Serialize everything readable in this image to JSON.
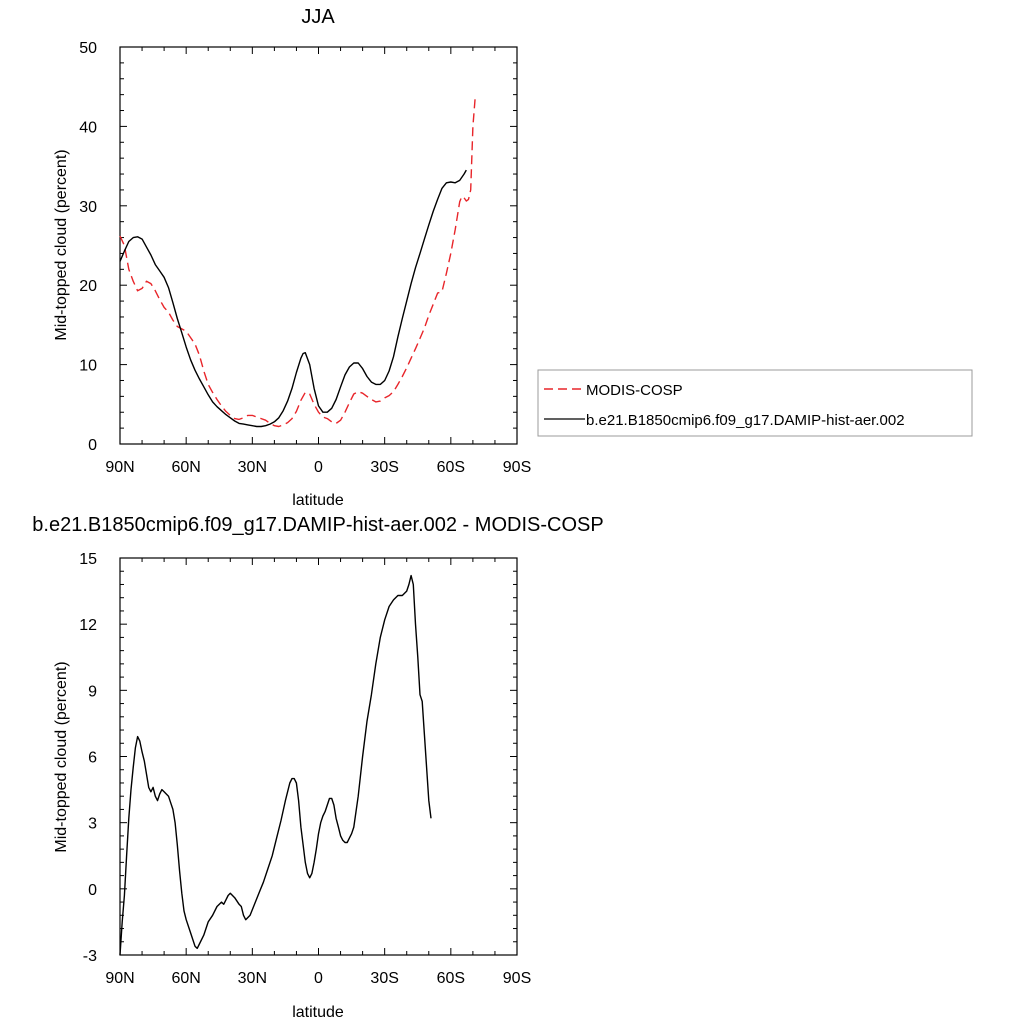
{
  "chart_data": [
    {
      "type": "line",
      "title": "JJA",
      "xlabel": "latitude",
      "ylabel": "Mid-topped cloud (percent)",
      "x_ticks": [
        90,
        60,
        30,
        0,
        -30,
        -60,
        -90
      ],
      "x_tick_labels": [
        "90N",
        "60N",
        "30N",
        "0",
        "30S",
        "60S",
        "90S"
      ],
      "xlim": [
        90,
        -90
      ],
      "y_ticks": [
        0,
        10,
        20,
        30,
        40,
        50
      ],
      "ylim": [
        0,
        50
      ],
      "grid": false,
      "legend_position": "right",
      "series": [
        {
          "name": "MODIS-COSP",
          "color": "#e8252a",
          "dash": "dashed",
          "points": [
            [
              90,
              26.2
            ],
            [
              88,
              25
            ],
            [
              86,
              22
            ],
            [
              84,
              20.5
            ],
            [
              82,
              19.3
            ],
            [
              80,
              19.6
            ],
            [
              78,
              20.5
            ],
            [
              76,
              20.2
            ],
            [
              74,
              19.3
            ],
            [
              72,
              18.2
            ],
            [
              70,
              17.2
            ],
            [
              68,
              16.6
            ],
            [
              66,
              15.6
            ],
            [
              64,
              14.8
            ],
            [
              62,
              14.5
            ],
            [
              60,
              14.2
            ],
            [
              58,
              13.4
            ],
            [
              56,
              12.6
            ],
            [
              54,
              11.2
            ],
            [
              52,
              9.2
            ],
            [
              50,
              7.5
            ],
            [
              48,
              6.5
            ],
            [
              46,
              5.6
            ],
            [
              44,
              4.8
            ],
            [
              42,
              4.1
            ],
            [
              40,
              3.6
            ],
            [
              38,
              3.2
            ],
            [
              36,
              3.1
            ],
            [
              34,
              3.3
            ],
            [
              32,
              3.6
            ],
            [
              30,
              3.6
            ],
            [
              28,
              3.4
            ],
            [
              26,
              3.2
            ],
            [
              24,
              3.0
            ],
            [
              22,
              2.6
            ],
            [
              20,
              2.3
            ],
            [
              18,
              2.2
            ],
            [
              16,
              2.4
            ],
            [
              14,
              2.7
            ],
            [
              12,
              3.2
            ],
            [
              10,
              4.1
            ],
            [
              8,
              5.5
            ],
            [
              6,
              6.5
            ],
            [
              4,
              6.3
            ],
            [
              2,
              5.0
            ],
            [
              0,
              4.0
            ],
            [
              -2,
              3.4
            ],
            [
              -4,
              3.2
            ],
            [
              -6,
              2.8
            ],
            [
              -8,
              2.6
            ],
            [
              -10,
              3.0
            ],
            [
              -12,
              4.0
            ],
            [
              -14,
              5.2
            ],
            [
              -16,
              6.3
            ],
            [
              -18,
              6.6
            ],
            [
              -20,
              6.4
            ],
            [
              -22,
              6.0
            ],
            [
              -24,
              5.6
            ],
            [
              -26,
              5.3
            ],
            [
              -28,
              5.4
            ],
            [
              -30,
              5.8
            ],
            [
              -32,
              6.1
            ],
            [
              -34,
              6.6
            ],
            [
              -36,
              7.5
            ],
            [
              -38,
              8.5
            ],
            [
              -40,
              9.6
            ],
            [
              -42,
              10.8
            ],
            [
              -44,
              12.0
            ],
            [
              -46,
              13.3
            ],
            [
              -48,
              14.6
            ],
            [
              -50,
              16.2
            ],
            [
              -52,
              17.6
            ],
            [
              -54,
              19.0
            ],
            [
              -56,
              19.2
            ],
            [
              -58,
              21.5
            ],
            [
              -60,
              24.0
            ],
            [
              -62,
              27.0
            ],
            [
              -64,
              30.5
            ],
            [
              -65,
              31.2
            ],
            [
              -66,
              31.0
            ],
            [
              -67,
              30.6
            ],
            [
              -68,
              30.8
            ],
            [
              -69,
              32.0
            ],
            [
              -70,
              40.0
            ],
            [
              -71,
              43.5
            ]
          ]
        },
        {
          "name": "b.e21.B1850cmip6.f09_g17.DAMIP-hist-aer.002",
          "color": "#000000",
          "dash": "solid",
          "points": [
            [
              90,
              23.0
            ],
            [
              88,
              24.3
            ],
            [
              86,
              25.5
            ],
            [
              84,
              26.0
            ],
            [
              82,
              26.1
            ],
            [
              80,
              25.8
            ],
            [
              78,
              24.8
            ],
            [
              76,
              23.8
            ],
            [
              74,
              22.6
            ],
            [
              72,
              21.8
            ],
            [
              70,
              21.0
            ],
            [
              68,
              19.7
            ],
            [
              66,
              17.8
            ],
            [
              64,
              15.8
            ],
            [
              62,
              14.0
            ],
            [
              60,
              12.2
            ],
            [
              58,
              10.6
            ],
            [
              56,
              9.3
            ],
            [
              54,
              8.2
            ],
            [
              52,
              7.2
            ],
            [
              50,
              6.2
            ],
            [
              48,
              5.3
            ],
            [
              46,
              4.7
            ],
            [
              44,
              4.2
            ],
            [
              42,
              3.7
            ],
            [
              40,
              3.3
            ],
            [
              38,
              2.9
            ],
            [
              36,
              2.6
            ],
            [
              34,
              2.5
            ],
            [
              32,
              2.4
            ],
            [
              30,
              2.3
            ],
            [
              28,
              2.2
            ],
            [
              26,
              2.2
            ],
            [
              24,
              2.3
            ],
            [
              22,
              2.5
            ],
            [
              20,
              2.8
            ],
            [
              18,
              3.3
            ],
            [
              16,
              4.2
            ],
            [
              14,
              5.4
            ],
            [
              12,
              7.0
            ],
            [
              10,
              9.0
            ],
            [
              8,
              10.8
            ],
            [
              7,
              11.4
            ],
            [
              6,
              11.5
            ],
            [
              4,
              10.0
            ],
            [
              2,
              7.0
            ],
            [
              0,
              4.8
            ],
            [
              -2,
              4.0
            ],
            [
              -4,
              4.0
            ],
            [
              -6,
              4.5
            ],
            [
              -8,
              5.6
            ],
            [
              -10,
              7.2
            ],
            [
              -12,
              8.7
            ],
            [
              -14,
              9.7
            ],
            [
              -16,
              10.2
            ],
            [
              -18,
              10.2
            ],
            [
              -20,
              9.5
            ],
            [
              -22,
              8.5
            ],
            [
              -24,
              7.8
            ],
            [
              -26,
              7.5
            ],
            [
              -28,
              7.5
            ],
            [
              -30,
              8.0
            ],
            [
              -32,
              9.2
            ],
            [
              -34,
              11.0
            ],
            [
              -36,
              13.5
            ],
            [
              -38,
              15.8
            ],
            [
              -40,
              18.0
            ],
            [
              -42,
              20.2
            ],
            [
              -44,
              22.2
            ],
            [
              -46,
              24.0
            ],
            [
              -48,
              25.8
            ],
            [
              -50,
              27.6
            ],
            [
              -52,
              29.3
            ],
            [
              -54,
              30.8
            ],
            [
              -56,
              32.2
            ],
            [
              -58,
              32.9
            ],
            [
              -60,
              33.0
            ],
            [
              -62,
              32.9
            ],
            [
              -64,
              33.2
            ],
            [
              -66,
              34.0
            ],
            [
              -67,
              34.5
            ]
          ]
        }
      ]
    },
    {
      "type": "line",
      "title": "b.e21.B1850cmip6.f09_g17.DAMIP-hist-aer.002 - MODIS-COSP",
      "xlabel": "latitude",
      "ylabel": "Mid-topped cloud (percent)",
      "x_ticks": [
        90,
        60,
        30,
        0,
        -30,
        -60,
        -90
      ],
      "x_tick_labels": [
        "90N",
        "60N",
        "30N",
        "0",
        "30S",
        "60S",
        "90S"
      ],
      "xlim": [
        90,
        -90
      ],
      "y_ticks": [
        -3,
        0,
        3,
        6,
        9,
        12,
        15
      ],
      "ylim": [
        -3,
        15
      ],
      "grid": false,
      "series": [
        {
          "color": "#000000",
          "dash": "solid",
          "points": [
            [
              90,
              -3.0
            ],
            [
              89,
              -1.5
            ],
            [
              88,
              -0.3
            ],
            [
              87,
              1.5
            ],
            [
              86,
              3.2
            ],
            [
              85,
              4.5
            ],
            [
              84,
              5.5
            ],
            [
              83,
              6.4
            ],
            [
              82,
              6.9
            ],
            [
              81,
              6.7
            ],
            [
              80,
              6.2
            ],
            [
              79,
              5.8
            ],
            [
              78,
              5.2
            ],
            [
              77,
              4.6
            ],
            [
              76,
              4.4
            ],
            [
              75,
              4.6
            ],
            [
              74,
              4.2
            ],
            [
              73,
              4.0
            ],
            [
              72,
              4.3
            ],
            [
              71,
              4.5
            ],
            [
              70,
              4.4
            ],
            [
              69,
              4.3
            ],
            [
              68,
              4.2
            ],
            [
              67,
              3.9
            ],
            [
              66,
              3.6
            ],
            [
              65,
              3.0
            ],
            [
              64,
              2.0
            ],
            [
              63,
              0.8
            ],
            [
              62,
              -0.2
            ],
            [
              61,
              -1.0
            ],
            [
              60,
              -1.4
            ],
            [
              58,
              -2.0
            ],
            [
              56,
              -2.6
            ],
            [
              55,
              -2.7
            ],
            [
              54,
              -2.5
            ],
            [
              52,
              -2.1
            ],
            [
              50,
              -1.5
            ],
            [
              48,
              -1.2
            ],
            [
              46,
              -0.8
            ],
            [
              44,
              -0.6
            ],
            [
              43,
              -0.7
            ],
            [
              42,
              -0.5
            ],
            [
              41,
              -0.3
            ],
            [
              40,
              -0.2
            ],
            [
              38,
              -0.4
            ],
            [
              36,
              -0.7
            ],
            [
              35,
              -0.8
            ],
            [
              34,
              -1.2
            ],
            [
              33,
              -1.4
            ],
            [
              31,
              -1.2
            ],
            [
              29,
              -0.7
            ],
            [
              27,
              -0.2
            ],
            [
              25,
              0.3
            ],
            [
              23,
              0.9
            ],
            [
              21,
              1.5
            ],
            [
              19,
              2.3
            ],
            [
              17,
              3.1
            ],
            [
              15,
              4.0
            ],
            [
              13,
              4.8
            ],
            [
              12,
              5.0
            ],
            [
              11,
              5.0
            ],
            [
              10,
              4.8
            ],
            [
              9,
              4.0
            ],
            [
              8,
              2.8
            ],
            [
              7,
              2.0
            ],
            [
              6,
              1.2
            ],
            [
              5,
              0.7
            ],
            [
              4,
              0.5
            ],
            [
              3,
              0.7
            ],
            [
              2,
              1.2
            ],
            [
              1,
              1.8
            ],
            [
              0,
              2.5
            ],
            [
              -1,
              3.0
            ],
            [
              -2,
              3.3
            ],
            [
              -3,
              3.5
            ],
            [
              -4,
              3.8
            ],
            [
              -5,
              4.1
            ],
            [
              -6,
              4.1
            ],
            [
              -7,
              3.8
            ],
            [
              -8,
              3.2
            ],
            [
              -9,
              2.8
            ],
            [
              -10,
              2.4
            ],
            [
              -11,
              2.2
            ],
            [
              -12,
              2.1
            ],
            [
              -13,
              2.1
            ],
            [
              -14,
              2.3
            ],
            [
              -15,
              2.5
            ],
            [
              -16,
              2.8
            ],
            [
              -18,
              4.2
            ],
            [
              -20,
              6.0
            ],
            [
              -22,
              7.6
            ],
            [
              -24,
              8.8
            ],
            [
              -26,
              10.2
            ],
            [
              -28,
              11.4
            ],
            [
              -30,
              12.2
            ],
            [
              -32,
              12.8
            ],
            [
              -34,
              13.1
            ],
            [
              -36,
              13.3
            ],
            [
              -38,
              13.3
            ],
            [
              -40,
              13.5
            ],
            [
              -41,
              13.8
            ],
            [
              -42,
              14.2
            ],
            [
              -43,
              13.8
            ],
            [
              -44,
              12.0
            ],
            [
              -45,
              10.5
            ],
            [
              -46,
              8.8
            ],
            [
              -47,
              8.5
            ],
            [
              -48,
              7.0
            ],
            [
              -49,
              5.5
            ],
            [
              -50,
              4.0
            ],
            [
              -51,
              3.2
            ]
          ]
        }
      ]
    }
  ]
}
